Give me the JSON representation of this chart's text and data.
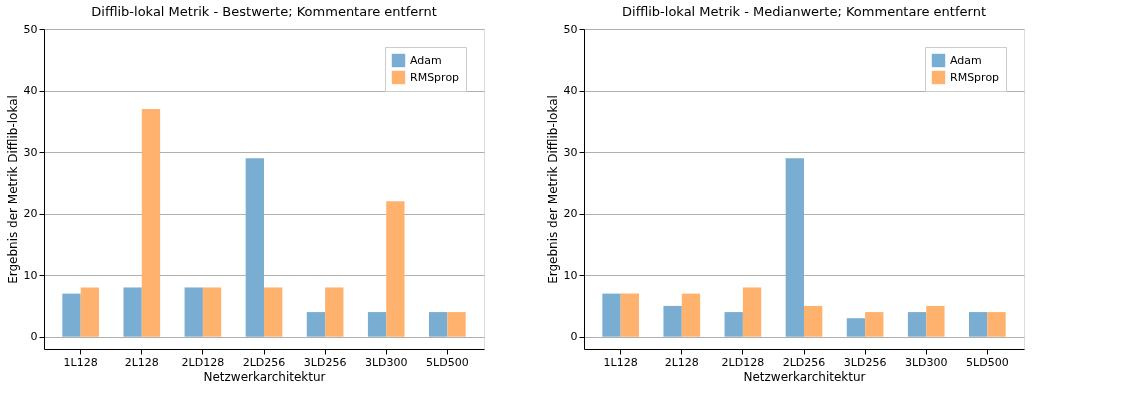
{
  "chart_data": [
    {
      "type": "bar",
      "title": "Difflib-lokal Metrik - Bestwerte; Kommentare entfernt",
      "xlabel": "Netzwerkarchitektur",
      "ylabel": "Ergebnis der Metrik Difflib-lokal",
      "categories": [
        "1L128",
        "2L128",
        "2LD128",
        "2LD256",
        "3LD256",
        "3LD300",
        "5LD500"
      ],
      "series": [
        {
          "name": "Adam",
          "color": "#79aed2",
          "values": [
            7,
            8,
            8,
            29,
            4,
            4,
            4
          ]
        },
        {
          "name": "RMSprop",
          "color": "#ffb26e",
          "values": [
            8,
            37,
            8,
            8,
            8,
            22,
            4
          ]
        }
      ],
      "ylim": [
        -2,
        50
      ],
      "yticks": [
        0,
        10,
        20,
        30,
        40,
        50
      ],
      "grid": "y",
      "legend": "top right"
    },
    {
      "type": "bar",
      "title": "Difflib-lokal Metrik - Medianwerte; Kommentare entfernt",
      "xlabel": "Netzwerkarchitektur",
      "ylabel": "Ergebnis der Metrik Difflib-lokal",
      "categories": [
        "1L128",
        "2L128",
        "2LD128",
        "2LD256",
        "3LD256",
        "3LD300",
        "5LD500"
      ],
      "series": [
        {
          "name": "Adam",
          "color": "#79aed2",
          "values": [
            7,
            5,
            4,
            29,
            3,
            4,
            4
          ]
        },
        {
          "name": "RMSprop",
          "color": "#ffb26e",
          "values": [
            7,
            7,
            8,
            5,
            4,
            5,
            4
          ]
        }
      ],
      "ylim": [
        -2,
        50
      ],
      "yticks": [
        0,
        10,
        20,
        30,
        40,
        50
      ],
      "grid": "y",
      "legend": "top right"
    }
  ]
}
